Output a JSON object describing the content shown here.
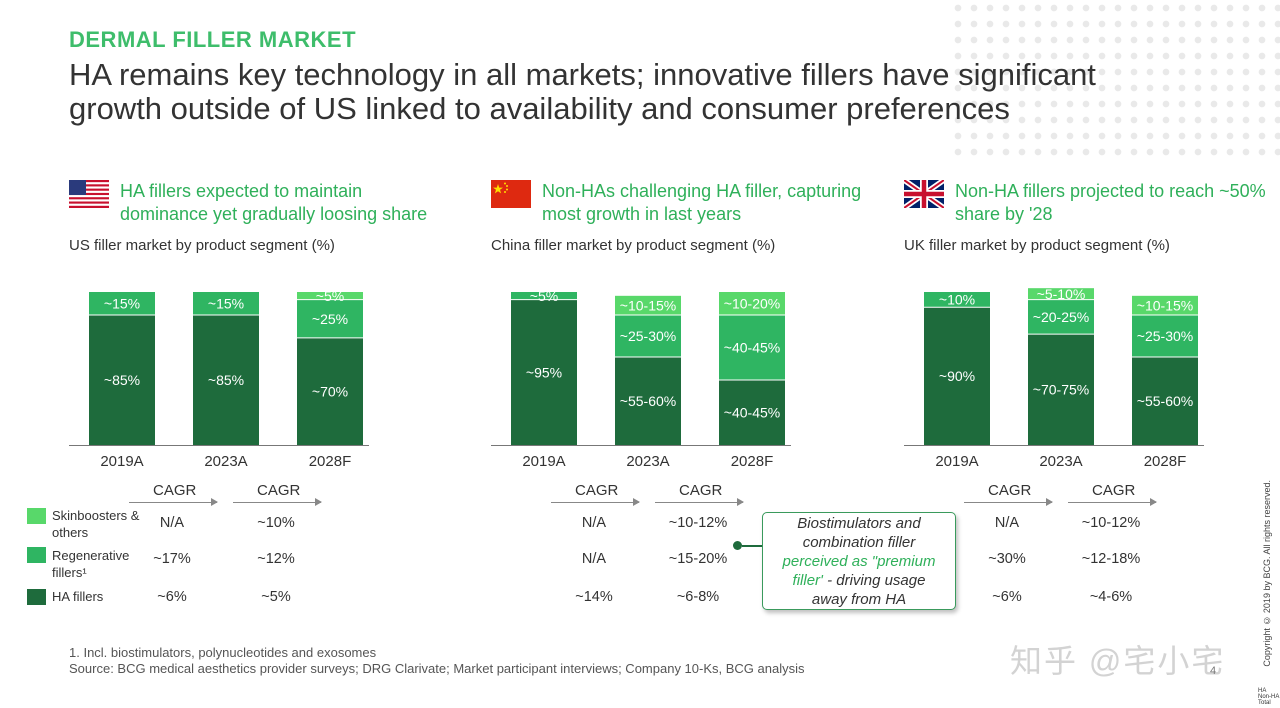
{
  "kicker": "DERMAL FILLER MARKET",
  "title": "HA remains key technology in all markets; innovative fillers have significant growth outside of US linked to availability and consumer preferences",
  "colors": {
    "ha": "#1e6b3c",
    "regen": "#2fb562",
    "skin": "#58d86a",
    "accent": "#3ebd6b"
  },
  "legend": [
    {
      "label": "Skinboosters &",
      "label2": "others",
      "key": "skin"
    },
    {
      "label": "Regenerative",
      "label2": "fillers¹",
      "key": "regen"
    },
    {
      "label": "HA fillers",
      "label2": "",
      "key": "ha"
    }
  ],
  "cagr_label": "CAGR",
  "callout": {
    "line1": "Biostimulators and",
    "line2": "combination filler",
    "line3": "perceived as \"premium",
    "line4": "filler'",
    "line5": " - driving usage",
    "line6": "away from HA"
  },
  "footnote": "1. Incl. biostimulators, polynucleotides and exosomes",
  "source": "Source: BCG medical aesthetics provider surveys; DRG Clarivate; Market participant interviews; Company 10-Ks, BCG analysis",
  "watermark": "知乎 @宅小宅",
  "page_number": "4",
  "copyright": "Copyright © 2019 by BCG. All rights reserved.",
  "tiny_legend": [
    "HA",
    "Non-HA",
    "Total"
  ],
  "chart_data": [
    {
      "type": "bar",
      "flag": "us-flag",
      "heading": "HA fillers expected to maintain dominance yet gradually loosing share",
      "subtitle": "US filler market by product segment (%)",
      "categories": [
        "2019A",
        "2023A",
        "2028F"
      ],
      "series": [
        {
          "name": "HA fillers",
          "key": "ha",
          "values": [
            85,
            85,
            70
          ],
          "labels": [
            "~85%",
            "~85%",
            "~70%"
          ]
        },
        {
          "name": "Regenerative fillers¹",
          "key": "regen",
          "values": [
            15,
            15,
            25
          ],
          "labels": [
            "~15%",
            "~15%",
            "~25%"
          ]
        },
        {
          "name": "Skinboosters & others",
          "key": "skin",
          "values": [
            0,
            0,
            5
          ],
          "labels": [
            "",
            "",
            "~5%"
          ]
        }
      ],
      "cagr": {
        "skin": [
          "N/A",
          "~10%"
        ],
        "regen": [
          "~17%",
          "~12%"
        ],
        "ha": [
          "~6%",
          "~5%"
        ]
      }
    },
    {
      "type": "bar",
      "flag": "china-flag",
      "heading": "Non-HAs challenging HA filler, capturing most growth in last years",
      "subtitle": "China filler market by product segment (%)",
      "categories": [
        "2019A",
        "2023A",
        "2028F"
      ],
      "series": [
        {
          "name": "HA fillers",
          "key": "ha",
          "values": [
            95,
            57.5,
            42.5
          ],
          "labels": [
            "~95%",
            "~55-60%",
            "~40-45%"
          ]
        },
        {
          "name": "Regenerative fillers¹",
          "key": "regen",
          "values": [
            5,
            27.5,
            42.5
          ],
          "labels": [
            "~5%",
            "~25-30%",
            "~40-45%"
          ]
        },
        {
          "name": "Skinboosters & others",
          "key": "skin",
          "values": [
            0,
            12.5,
            15
          ],
          "labels": [
            "",
            "~10-15%",
            "~10-20%"
          ]
        }
      ],
      "cagr": {
        "skin": [
          "N/A",
          "~10-12%"
        ],
        "regen": [
          "N/A",
          "~15-20%"
        ],
        "ha": [
          "~14%",
          "~6-8%"
        ]
      }
    },
    {
      "type": "bar",
      "flag": "uk-flag",
      "heading": "Non-HA fillers projected to reach ~50% share by '28",
      "subtitle": "UK filler market by product segment (%)",
      "categories": [
        "2019A",
        "2023A",
        "2028F"
      ],
      "series": [
        {
          "name": "HA fillers",
          "key": "ha",
          "values": [
            90,
            72.5,
            57.5
          ],
          "labels": [
            "~90%",
            "~70-75%",
            "~55-60%"
          ]
        },
        {
          "name": "Regenerative fillers¹",
          "key": "regen",
          "values": [
            10,
            22.5,
            27.5
          ],
          "labels": [
            "~10%",
            "~20-25%",
            "~25-30%"
          ]
        },
        {
          "name": "Skinboosters & others",
          "key": "skin",
          "values": [
            0,
            7.5,
            12.5
          ],
          "labels": [
            "",
            "~5-10%",
            "~10-15%"
          ]
        }
      ],
      "cagr": {
        "skin": [
          "N/A",
          "~10-12%"
        ],
        "regen": [
          "~30%",
          "~12-18%"
        ],
        "ha": [
          "~6%",
          "~4-6%"
        ]
      }
    }
  ]
}
